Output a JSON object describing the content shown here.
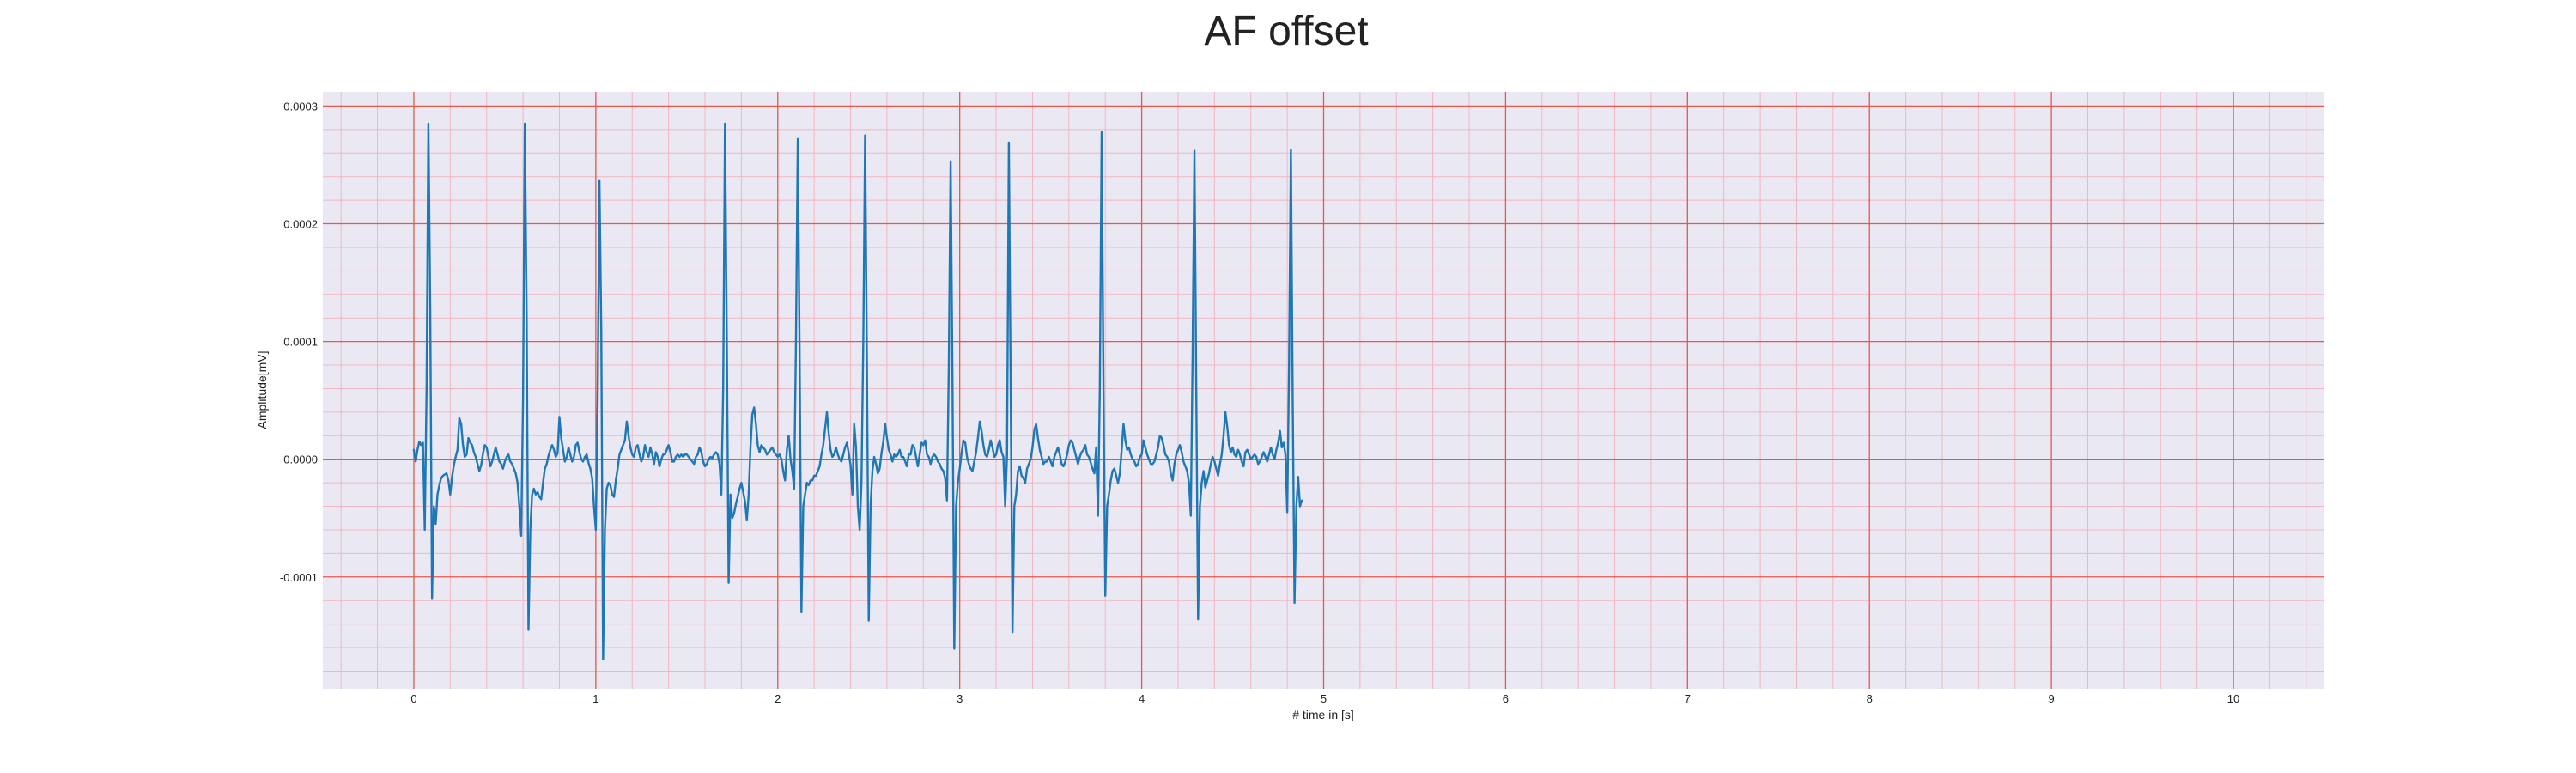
{
  "chart_data": {
    "type": "line",
    "title": "AF offset",
    "xlabel": "# time in [s]",
    "ylabel": "Amplitude[mV]",
    "xlim": [
      -0.5,
      10.5
    ],
    "ylim": [
      -0.000195,
      0.000312
    ],
    "x_ticks": [
      0,
      1,
      2,
      3,
      4,
      5,
      6,
      7,
      8,
      9,
      10
    ],
    "x_tick_labels": [
      "0",
      "1",
      "2",
      "3",
      "4",
      "5",
      "6",
      "7",
      "8",
      "9",
      "10"
    ],
    "y_ticks": [
      -0.0001,
      0,
      0.0001,
      0.0002,
      0.0003
    ],
    "y_tick_labels": [
      "-0.0001",
      "0.0000",
      "0.0001",
      "0.0002",
      "0.0003"
    ],
    "grid": true,
    "major_grid_color": "#e8574a",
    "minor_grid_color": "#f2b5c2",
    "plot_background": "#eae9f3",
    "series": [
      {
        "name": "",
        "color": "#1f77b4",
        "sampling_interval_s": 0.01,
        "x_start": 0,
        "values": [
          8e-06,
          -2e-06,
          8e-06,
          1.5e-05,
          1.2e-05,
          1.4e-05,
          -6e-05,
          6e-05,
          0.000285,
          0.00013,
          -0.000118,
          -4e-05,
          -5.5e-05,
          -3e-05,
          -2.2e-05,
          -1.6e-05,
          -1.4e-05,
          -1.3e-05,
          -1.2e-05,
          -1.8e-05,
          -3e-05,
          -1.5e-05,
          -5e-06,
          2e-06,
          8e-06,
          3.5e-05,
          3e-05,
          1.2e-05,
          2e-06,
          4e-06,
          1.8e-05,
          1.4e-05,
          1.2e-05,
          6e-06,
          2e-06,
          -4e-06,
          -1e-05,
          -5e-06,
          5e-06,
          1.2e-05,
          1e-05,
          2e-06,
          -6e-06,
          -2e-06,
          4e-06,
          1e-05,
          4e-06,
          -2e-06,
          -4e-06,
          -8e-06,
          -2e-06,
          2e-06,
          4e-06,
          -2e-06,
          -4e-06,
          -8e-06,
          -1.2e-05,
          -2e-05,
          -4e-05,
          -6.5e-05,
          5e-05,
          0.000285,
          0.00012,
          -0.000145,
          -6e-05,
          -3e-05,
          -2.5e-05,
          -3e-05,
          -2.8e-05,
          -3.2e-05,
          -3.4e-05,
          -2e-05,
          -8e-06,
          -4e-06,
          3e-06,
          8e-06,
          1.2e-05,
          8e-06,
          2e-06,
          5e-06,
          3.6e-05,
          1.8e-05,
          8e-06,
          -2e-06,
          2e-06,
          1e-05,
          4e-06,
          -2e-06,
          2e-06,
          1.2e-05,
          1.4e-05,
          6e-06,
          0.0,
          -2e-06,
          2e-06,
          4e-06,
          -3e-06,
          -8e-06,
          -1.6e-05,
          -4e-05,
          -6e-05,
          5e-05,
          0.000237,
          0.00011,
          -0.00017,
          -6e-05,
          -2.5e-05,
          -2e-05,
          -2.2e-05,
          -3e-05,
          -3.2e-05,
          -1.8e-05,
          -8e-06,
          4e-06,
          8e-06,
          1.2e-05,
          1.6e-05,
          3.2e-05,
          2e-05,
          1e-05,
          4e-06,
          2e-06,
          1e-05,
          1.2e-05,
          4e-06,
          -2e-06,
          2e-06,
          1.2e-05,
          6e-06,
          2e-06,
          1e-05,
          4e-06,
          -4e-06,
          6e-06,
          2e-06,
          -6e-06,
          0.0,
          4e-06,
          4e-06,
          8e-06,
          1.2e-05,
          6e-06,
          -2e-06,
          -2e-06,
          2e-06,
          4e-06,
          2e-06,
          4e-06,
          2e-06,
          4e-06,
          4e-06,
          2e-06,
          0.0,
          -2e-06,
          -4e-06,
          2e-06,
          4e-06,
          1e-05,
          6e-06,
          -2e-06,
          -6e-06,
          -4e-06,
          0.0,
          2e-06,
          1e-06,
          4e-06,
          6e-06,
          4e-06,
          -4e-06,
          -3e-05,
          6e-05,
          0.000285,
          0.0001,
          -0.000105,
          -3e-05,
          -5e-05,
          -4.6e-05,
          -3.8e-05,
          -3.2e-05,
          -2.5e-05,
          -2e-05,
          -2.8e-05,
          -3.6e-05,
          -5.2e-05,
          -3e-05,
          1e-05,
          3.8e-05,
          4.4e-05,
          3e-05,
          1.2e-05,
          6e-06,
          1.2e-05,
          1e-05,
          8e-06,
          4e-06,
          6e-06,
          8e-06,
          1e-05,
          6e-06,
          4e-06,
          2e-06,
          4e-06,
          0.0,
          -1e-05,
          -1.8e-05,
          8e-06,
          2e-05,
          0.0,
          -1e-05,
          -2.5e-05,
          0.0001,
          0.000272,
          9e-05,
          -0.00013,
          -4e-05,
          -3e-05,
          -2e-05,
          -2.2e-05,
          -1.8e-05,
          -1.8e-05,
          -1.4e-05,
          -1.4e-05,
          -1e-05,
          -6e-06,
          4e-06,
          1.2e-05,
          2.6e-05,
          4e-05,
          2.2e-05,
          8e-06,
          2e-06,
          4e-06,
          1e-05,
          4e-06,
          0.0,
          -2e-06,
          4e-06,
          1e-05,
          1.4e-05,
          5e-06,
          -5e-06,
          -3e-05,
          3e-05,
          1e-05,
          -4e-05,
          -6e-05,
          -2e-05,
          0.0001,
          0.000275,
          8e-05,
          -0.000137,
          -4e-05,
          -1e-05,
          2e-06,
          -4e-06,
          -1.2e-05,
          -8e-06,
          5e-06,
          1.5e-05,
          3e-05,
          1.8e-05,
          8e-06,
          4e-06,
          -2e-06,
          4e-06,
          2e-06,
          4e-06,
          8e-06,
          2e-06,
          2e-06,
          -2e-06,
          -6e-06,
          4e-06,
          4e-06,
          1.2e-05,
          1e-05,
          2e-06,
          -6e-06,
          4e-06,
          1.4e-05,
          1.2e-05,
          1.6e-05,
          4e-06,
          2e-06,
          -4e-06,
          2e-06,
          4e-06,
          2e-06,
          -2e-06,
          -4e-06,
          -8e-06,
          -1e-05,
          -1.6e-05,
          -3.5e-05,
          8e-05,
          0.000253,
          7e-05,
          -0.000161,
          -4e-05,
          -2e-05,
          -8e-06,
          5e-06,
          1.6e-05,
          1.4e-05,
          2e-06,
          -4e-06,
          -8e-06,
          -1e-05,
          -2e-06,
          6e-06,
          1.8e-05,
          3.2e-05,
          2.4e-05,
          1.2e-05,
          4e-06,
          2e-06,
          8e-06,
          1.6e-05,
          1e-05,
          2e-06,
          4e-06,
          1.2e-05,
          1.6e-05,
          6e-06,
          2e-06,
          -4e-05,
          4e-06,
          0.000269,
          6e-05,
          -0.000147,
          -4e-05,
          -3e-05,
          -1e-05,
          -6e-06,
          -1.4e-05,
          -1.6e-05,
          -2e-05,
          -8e-06,
          -4e-06,
          0.0,
          1e-05,
          2.5e-05,
          3e-05,
          1.8e-05,
          8e-06,
          2e-06,
          -4e-06,
          -2e-06,
          -2e-06,
          2e-06,
          -2e-06,
          -6e-06,
          2e-06,
          6e-06,
          1e-05,
          4e-06,
          -4e-06,
          -6e-06,
          -2e-06,
          4e-06,
          1.2e-05,
          1.6e-05,
          1.4e-05,
          8e-06,
          2e-06,
          -4e-06,
          2e-06,
          6e-06,
          8e-06,
          1.2e-05,
          4e-06,
          2e-06,
          -3e-06,
          -8e-06,
          -1.2e-05,
          1e-05,
          -4.8e-05,
          6e-05,
          0.000278,
          6e-05,
          -0.000116,
          -4e-05,
          -3e-05,
          -1.8e-05,
          -1e-05,
          -8e-06,
          -1.4e-05,
          -2e-05,
          -1.2e-05,
          8e-06,
          3e-05,
          1.6e-05,
          8e-06,
          1e-05,
          4e-06,
          0.0,
          -2e-06,
          -6e-06,
          -4e-06,
          2e-06,
          4e-06,
          1.6e-05,
          1e-05,
          4e-06,
          0.0,
          -4e-06,
          -4e-06,
          -2e-06,
          4e-06,
          1e-05,
          2e-05,
          1.8e-05,
          1.2e-05,
          4e-06,
          2e-06,
          -2e-06,
          -1.2e-05,
          -1.8e-05,
          -4e-06,
          4e-06,
          8e-06,
          1.2e-05,
          6e-06,
          -2e-06,
          -6e-06,
          -1e-05,
          -2e-05,
          -4.8e-05,
          9e-05,
          0.000262,
          6e-05,
          -0.000136,
          -4e-05,
          -2e-05,
          -1e-05,
          -2.4e-05,
          -1.8e-05,
          -1.2e-05,
          -4e-06,
          2e-06,
          -2e-06,
          -8e-06,
          -1.4e-05,
          -4e-06,
          4e-06,
          2e-05,
          4e-05,
          2.8e-05,
          1.2e-05,
          6e-06,
          1e-05,
          4e-06,
          2e-06,
          8e-06,
          4e-06,
          -2e-06,
          -6e-06,
          6e-06,
          8e-06,
          4e-06,
          0.0,
          2e-06,
          4e-06,
          2e-06,
          -4e-06,
          -2e-06,
          2e-06,
          6e-06,
          2e-06,
          -2e-06,
          4e-06,
          1e-05,
          4e-06,
          0.0,
          8e-06,
          1.4e-05,
          2.4e-05,
          1e-05,
          1.4e-05,
          4e-06,
          -4.5e-05,
          8e-05,
          0.000263,
          5e-05,
          -0.000122,
          -4e-05,
          -1.5e-05,
          -4e-05,
          -3.5e-05
        ]
      }
    ]
  }
}
